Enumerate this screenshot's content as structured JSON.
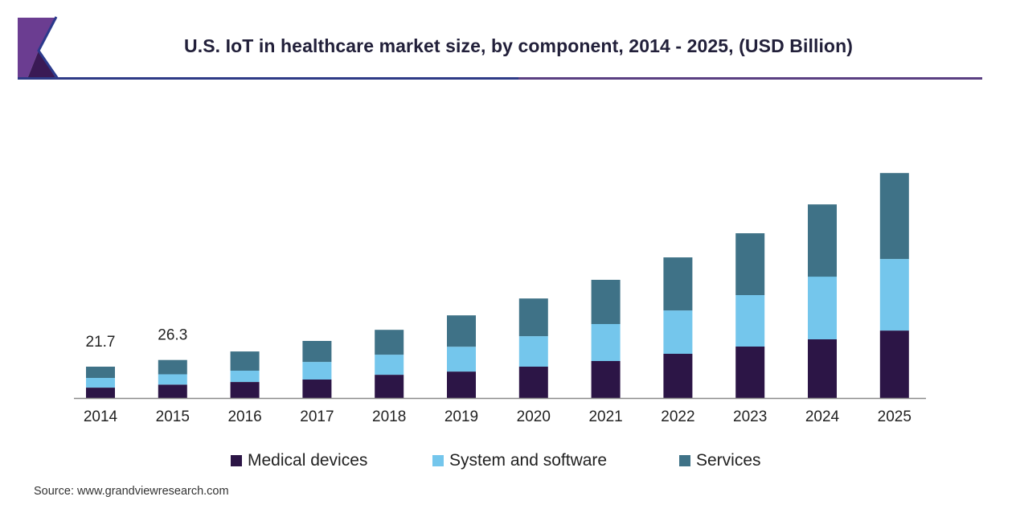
{
  "header": {
    "title": "U.S. IoT in healthcare market size, by component, 2014 - 2025, (USD Billion)",
    "accent_colors": {
      "logo_purple": "#6b3d91",
      "logo_dark": "#3a1a55",
      "logo_edge": "#2b3a8c"
    }
  },
  "chart_data": {
    "type": "bar",
    "stacked": true,
    "title": "U.S. IoT in healthcare market size, by component, 2014 - 2025, (USD Billion)",
    "xlabel": "",
    "ylabel": "",
    "ylim": [
      0,
      160
    ],
    "grid": false,
    "legend_position": "bottom",
    "categories": [
      "2014",
      "2015",
      "2016",
      "2017",
      "2018",
      "2019",
      "2020",
      "2021",
      "2022",
      "2023",
      "2024",
      "2025"
    ],
    "series": [
      {
        "name": "Medical devices",
        "color": "#2c1546",
        "values": [
          7.2,
          9.3,
          11.1,
          12.8,
          16.1,
          18.3,
          21.7,
          25.6,
          30.6,
          35.6,
          40.6,
          46.7
        ]
      },
      {
        "name": "System and software",
        "color": "#74c6ec",
        "values": [
          6.7,
          7.1,
          7.8,
          12.2,
          13.9,
          17.2,
          21.1,
          25.6,
          30.0,
          35.6,
          43.4,
          49.5
        ]
      },
      {
        "name": "Services",
        "color": "#3f7287",
        "values": [
          7.8,
          9.9,
          13.3,
          14.5,
          17.2,
          21.7,
          26.1,
          30.6,
          36.7,
          42.8,
          50.0,
          59.5
        ]
      }
    ],
    "data_labels": [
      {
        "category": "2014",
        "text": "21.7"
      },
      {
        "category": "2015",
        "text": "26.3"
      }
    ]
  },
  "legend": {
    "items": [
      {
        "label": "Medical devices",
        "color": "#2c1546"
      },
      {
        "label": "System and software",
        "color": "#74c6ec"
      },
      {
        "label": "Services",
        "color": "#3f7287"
      }
    ]
  },
  "footer": {
    "source": "Source: www.grandviewresearch.com"
  }
}
